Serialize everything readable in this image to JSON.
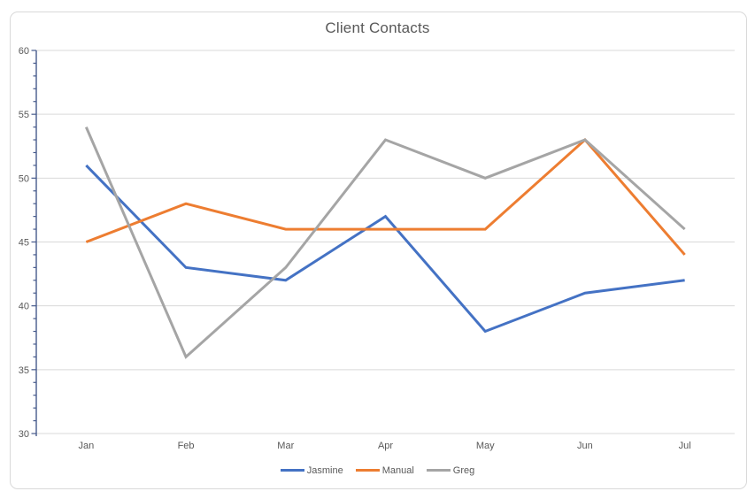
{
  "chart_data": {
    "type": "line",
    "title": "Client Contacts",
    "categories": [
      "Jan",
      "Feb",
      "Mar",
      "Apr",
      "May",
      "Jun",
      "Jul"
    ],
    "series": [
      {
        "name": "Jasmine",
        "color": "#4472C4",
        "values": [
          51,
          43,
          42,
          47,
          38,
          41,
          42
        ]
      },
      {
        "name": "Manual",
        "color": "#ED7D31",
        "values": [
          45,
          48,
          46,
          46,
          46,
          53,
          44
        ]
      },
      {
        "name": "Greg",
        "color": "#A5A5A5",
        "values": [
          54,
          36,
          43,
          53,
          50,
          53,
          46
        ]
      }
    ],
    "ylim": [
      30,
      60
    ],
    "y_major_step": 5,
    "y_minor_step": 1,
    "y_tick_labels": [
      "30",
      "35",
      "40",
      "45",
      "50",
      "55",
      "60"
    ],
    "xlabel": "",
    "ylabel": "",
    "grid": "horizontal-major",
    "legend_position": "bottom",
    "colors": {
      "title_text": "#595959",
      "axis_text": "#595959",
      "gridline": "#D9D9D9",
      "x_axis_line": "#D9D9D9",
      "y_axis_line": "#465A8C",
      "frame_border": "#D9D9D9",
      "background": "#FFFFFF"
    }
  }
}
